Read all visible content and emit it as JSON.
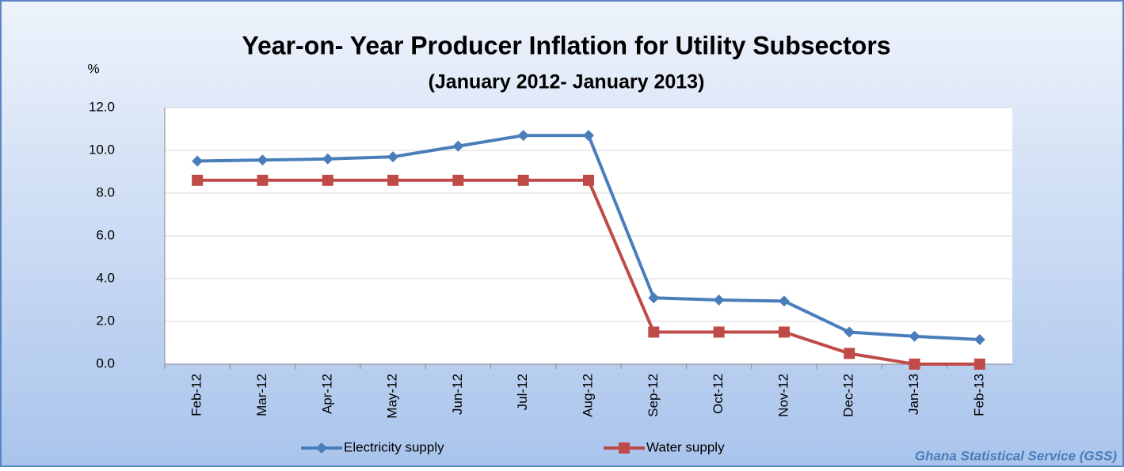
{
  "chart_data": {
    "type": "line",
    "title": "Year-on- Year Producer Inflation for Utility Subsectors",
    "subtitle": "(January 2012- January 2013)",
    "ylabel": "%",
    "source": "Ghana Statistical Service (GSS)",
    "categories": [
      "Feb-12",
      "Mar-12",
      "Apr-12",
      "May-12",
      "Jun-12",
      "Jul-12",
      "Aug-12",
      "Sep-12",
      "Oct-12",
      "Nov-12",
      "Dec-12",
      "Jan-13",
      "Feb-13"
    ],
    "series": [
      {
        "name": "Electricity supply",
        "color": "#4a7ebb",
        "marker": "diamond",
        "values": [
          9.5,
          9.55,
          9.6,
          9.7,
          10.2,
          10.7,
          10.7,
          3.1,
          3.0,
          2.95,
          1.5,
          1.3,
          1.15
        ]
      },
      {
        "name": "Water supply",
        "color": "#be4b48",
        "marker": "square",
        "values": [
          8.6,
          8.6,
          8.6,
          8.6,
          8.6,
          8.6,
          8.6,
          1.5,
          1.5,
          1.5,
          0.5,
          0,
          0
        ]
      }
    ],
    "ylim": [
      0,
      12
    ],
    "yticks": [
      {
        "value": 0,
        "label": "0.0"
      },
      {
        "value": 2,
        "label": "2.0"
      },
      {
        "value": 4,
        "label": "4.0"
      },
      {
        "value": 6,
        "label": "6.0"
      },
      {
        "value": 8,
        "label": "8.0"
      },
      {
        "value": 10,
        "label": "10.0"
      },
      {
        "value": 12,
        "label": "12.0"
      }
    ],
    "grid": true,
    "legend": "bottom"
  }
}
